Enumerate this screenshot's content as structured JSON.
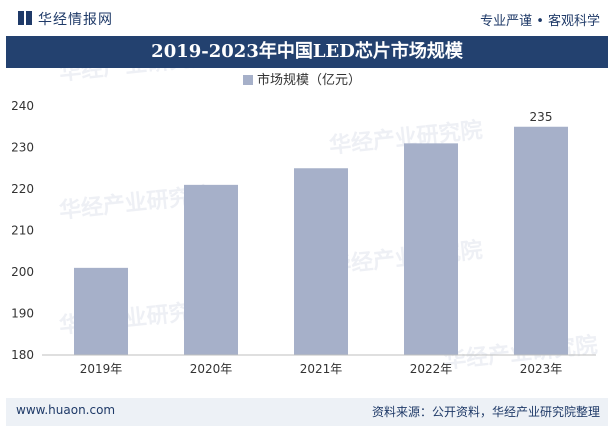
{
  "header": {
    "brand": "华经情报网",
    "tagline": "专业严谨 • 客观科学"
  },
  "chart_title": "2019-2023年中国LED芯片市场规模",
  "footer": {
    "site": "www.huaon.com",
    "source": "资料来源：公开资料，华经产业研究院整理"
  },
  "watermark": "华经产业研究院",
  "colors": {
    "bar": "#a6b0c9",
    "title_bg": "#23416f",
    "brand": "#1f3a68",
    "footer_bg": "#edf1f6"
  },
  "chart_data": {
    "type": "bar",
    "categories": [
      "2019年",
      "2020年",
      "2021年",
      "2022年",
      "2023年"
    ],
    "series": [
      {
        "name": "市场规模（亿元）",
        "values": [
          201,
          221,
          225,
          231,
          235
        ]
      }
    ],
    "ylim": [
      180,
      240
    ],
    "yticks": [
      180,
      190,
      200,
      210,
      220,
      230,
      240
    ],
    "data_labels": [
      null,
      null,
      null,
      null,
      "235"
    ],
    "legend_position": "top-center",
    "grid": false
  }
}
